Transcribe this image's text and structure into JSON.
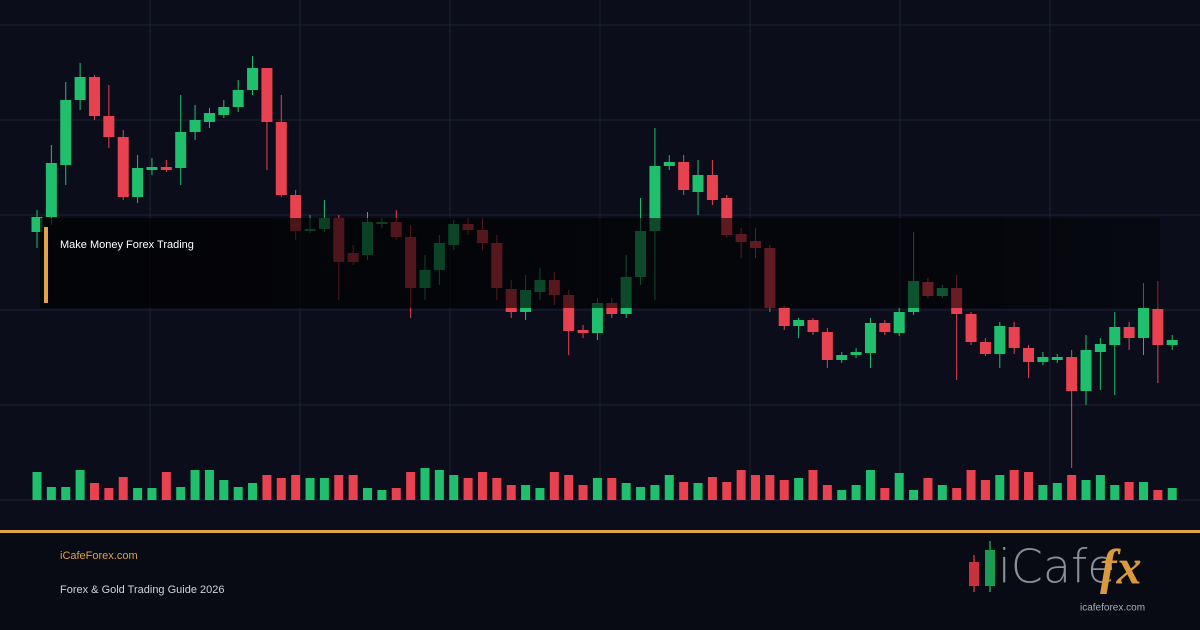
{
  "chart_data": {
    "type": "candlestick",
    "open": [
      268,
      283,
      335,
      400,
      423,
      384,
      363,
      303,
      330,
      333,
      332,
      368,
      378,
      385,
      393,
      410,
      432,
      378,
      305,
      269,
      271,
      282,
      247,
      245,
      276,
      278,
      263,
      212,
      230,
      255,
      276,
      270,
      257,
      211,
      188,
      208,
      220,
      205,
      170,
      167,
      197,
      186,
      223,
      269,
      334,
      338,
      308,
      325,
      302,
      266,
      259,
      252,
      192,
      174,
      180,
      168,
      140,
      145,
      147,
      177,
      167,
      188,
      218,
      204,
      212,
      186,
      158,
      146,
      173,
      152,
      138,
      140,
      143,
      109,
      148,
      155,
      173,
      162,
      191,
      155
    ],
    "high": [
      290,
      355,
      418,
      437,
      425,
      415,
      370,
      345,
      342,
      340,
      405,
      395,
      392,
      400,
      420,
      444,
      432,
      405,
      310,
      285,
      300,
      285,
      255,
      288,
      282,
      290,
      275,
      245,
      265,
      280,
      282,
      282,
      265,
      220,
      225,
      232,
      228,
      210,
      175,
      202,
      202,
      245,
      302,
      372,
      345,
      345,
      340,
      340,
      305,
      272,
      272,
      255,
      195,
      182,
      182,
      172,
      148,
      152,
      182,
      180,
      192,
      268,
      222,
      215,
      225,
      188,
      162,
      178,
      178,
      155,
      148,
      146,
      150,
      165,
      162,
      188,
      178,
      217,
      219,
      165
    ],
    "low": [
      252,
      275,
      315,
      390,
      380,
      352,
      300,
      297,
      325,
      328,
      315,
      360,
      372,
      382,
      388,
      405,
      330,
      303,
      260,
      267,
      268,
      200,
      235,
      240,
      272,
      260,
      182,
      200,
      215,
      250,
      265,
      250,
      200,
      182,
      180,
      200,
      195,
      145,
      162,
      160,
      182,
      182,
      215,
      200,
      330,
      305,
      285,
      295,
      262,
      242,
      242,
      188,
      170,
      162,
      165,
      132,
      137,
      142,
      132,
      165,
      164,
      185,
      202,
      202,
      120,
      155,
      144,
      132,
      146,
      122,
      135,
      137,
      32,
      95,
      110,
      105,
      150,
      145,
      117,
      150
    ],
    "close": [
      283,
      337,
      400,
      423,
      384,
      363,
      303,
      332,
      333,
      330,
      368,
      380,
      387,
      393,
      410,
      432,
      378,
      305,
      269,
      271,
      282,
      238,
      238,
      278,
      278,
      263,
      212,
      230,
      257,
      276,
      270,
      257,
      212,
      188,
      210,
      220,
      205,
      169,
      167,
      197,
      186,
      223,
      269,
      334,
      338,
      310,
      325,
      300,
      265,
      258,
      252,
      192,
      174,
      180,
      168,
      140,
      145,
      148,
      177,
      168,
      188,
      219,
      204,
      212,
      186,
      158,
      146,
      174,
      152,
      138,
      143,
      143,
      109,
      150,
      156,
      173,
      162,
      192,
      155,
      160
    ],
    "volume": [
      28,
      13,
      13,
      30,
      17,
      12,
      23,
      12,
      12,
      28,
      13,
      30,
      30,
      20,
      13,
      17,
      25,
      22,
      25,
      22,
      22,
      25,
      25,
      12,
      10,
      12,
      28,
      32,
      30,
      25,
      22,
      28,
      22,
      15,
      15,
      12,
      28,
      25,
      15,
      22,
      22,
      17,
      13,
      15,
      25,
      18,
      17,
      23,
      18,
      30,
      25,
      25,
      20,
      22,
      30,
      15,
      10,
      15,
      30,
      12,
      27,
      10,
      22,
      15,
      12,
      30,
      20,
      25,
      30,
      28,
      15,
      17,
      25,
      20,
      25,
      15,
      18,
      18,
      10,
      12
    ],
    "ylim": [
      0,
      475
    ],
    "yticks": [
      0,
      95,
      190,
      285,
      380,
      475
    ],
    "volume_lim": [
      0,
      475
    ],
    "grid": true,
    "up_color": "#1fbf6e",
    "down_color": "#e8414f"
  },
  "overlay": {
    "title": "Make Money Forex Trading"
  },
  "footer": {
    "site": "iCafeForex.com",
    "tagline": "Forex & Gold Trading Guide 2026"
  },
  "logo": {
    "text": "iCafe",
    "accent": "fx",
    "url": "icafeforex.com"
  }
}
